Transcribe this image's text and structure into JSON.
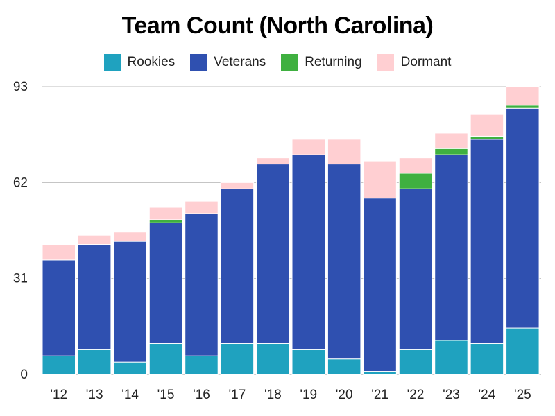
{
  "chart_data": {
    "type": "bar",
    "stacked": true,
    "title": "Team Count (North Carolina)",
    "xlabel": "",
    "ylabel": "",
    "categories": [
      "'12",
      "'13",
      "'14",
      "'15",
      "'16",
      "'17",
      "'18",
      "'19",
      "'20",
      "'21",
      "'22",
      "'23",
      "'24",
      "'25"
    ],
    "yticks": [
      0,
      31,
      62,
      93
    ],
    "ylim": [
      0,
      93
    ],
    "grid": true,
    "legend_position": "top",
    "series": [
      {
        "name": "Rookies",
        "color": "#1fa2bf",
        "values": [
          6,
          8,
          4,
          10,
          6,
          10,
          10,
          8,
          5,
          1,
          8,
          11,
          10,
          15
        ]
      },
      {
        "name": "Veterans",
        "color": "#2f50b0",
        "values": [
          31,
          34,
          39,
          39,
          46,
          50,
          58,
          63,
          63,
          56,
          52,
          60,
          66,
          71
        ]
      },
      {
        "name": "Returning",
        "color": "#3fb040",
        "values": [
          0,
          0,
          0,
          1,
          0,
          0,
          0,
          0,
          0,
          0,
          5,
          2,
          1,
          1
        ]
      },
      {
        "name": "Dormant",
        "color": "#ffcfd2",
        "values": [
          5,
          3,
          3,
          4,
          4,
          2,
          2,
          5,
          8,
          12,
          5,
          5,
          7,
          6
        ]
      }
    ]
  }
}
